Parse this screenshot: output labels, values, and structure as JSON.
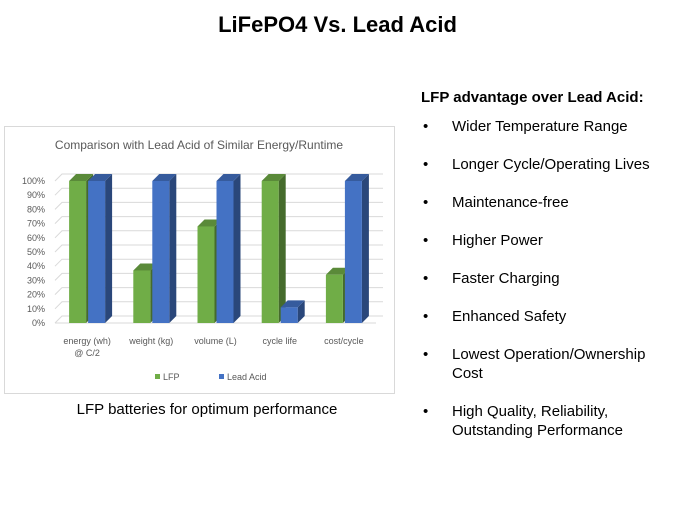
{
  "slide": {
    "title": "LiFePO4 Vs. Lead Acid",
    "caption": "LFP batteries for optimum performance"
  },
  "advantages": {
    "heading": "LFP advantage over Lead Acid:",
    "bullet_glyph": "•",
    "items": [
      [
        "Wider Temperature Range"
      ],
      [
        "Longer Cycle/Operating Lives"
      ],
      [
        "Maintenance-free"
      ],
      [
        "Higher Power"
      ],
      [
        "Faster Charging"
      ],
      [
        "Enhanced Safety"
      ],
      [
        "Lowest Operation/Ownership",
        "Cost"
      ],
      [
        "High Quality, Reliability,",
        "Outstanding Performance"
      ]
    ]
  },
  "chart_data": {
    "type": "bar",
    "title": "Comparison with Lead Acid of Similar Energy/Runtime",
    "categories": [
      [
        "energy (wh)",
        "@ C/2"
      ],
      [
        "weight (kg)"
      ],
      [
        "volume (L)"
      ],
      [
        "cycle life"
      ],
      [
        "cost/cycle"
      ]
    ],
    "series": [
      {
        "name": "LFP",
        "color": "#70ad47",
        "values": [
          100,
          37,
          68,
          100,
          34
        ]
      },
      {
        "name": "Lead Acid",
        "color": "#4472c4",
        "values": [
          100,
          100,
          100,
          11,
          100
        ]
      }
    ],
    "y_ticks": [
      "0%",
      "10%",
      "20%",
      "30%",
      "40%",
      "50%",
      "60%",
      "70%",
      "80%",
      "90%",
      "100%"
    ],
    "ylim": [
      0,
      100
    ],
    "grid": true,
    "legend_position": "bottom",
    "style": "3d-clustered-column"
  }
}
